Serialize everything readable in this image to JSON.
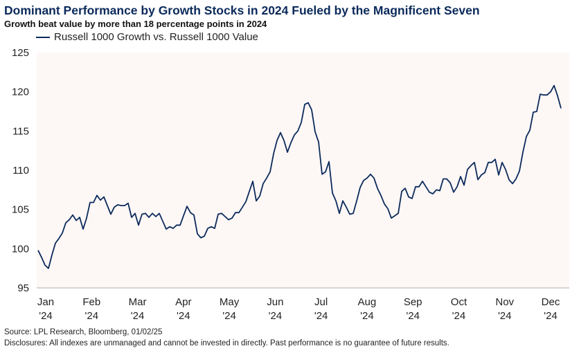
{
  "chart_data": {
    "type": "line",
    "title": "Dominant Performance by Growth Stocks in 2024 Fueled by the Magnificent Seven",
    "subtitle": "Growth beat value by more than 18 percentage points in 2024",
    "xlabel": "",
    "ylabel": "",
    "x_range": [
      "2024-01-02",
      "2024-12-31"
    ],
    "x_spacing": "evenly spaced trading-day observations",
    "ylim": [
      95,
      125
    ],
    "yticks": [
      95,
      100,
      105,
      110,
      115,
      120,
      125
    ],
    "xtick_labels": [
      {
        "month": "Jan",
        "year": "'24"
      },
      {
        "month": "Feb",
        "year": "'24"
      },
      {
        "month": "Mar",
        "year": "'24"
      },
      {
        "month": "Apr",
        "year": "'24"
      },
      {
        "month": "May",
        "year": "'24"
      },
      {
        "month": "Jun",
        "year": "'24"
      },
      {
        "month": "Jul",
        "year": "'24"
      },
      {
        "month": "Aug",
        "year": "'24"
      },
      {
        "month": "Sep",
        "year": "'24"
      },
      {
        "month": "Oct",
        "year": "'24"
      },
      {
        "month": "Nov",
        "year": "'24"
      },
      {
        "month": "Dec",
        "year": "'24"
      }
    ],
    "grid": false,
    "legend": "top-left",
    "plot_background": "#fdf7f6",
    "series": [
      {
        "name": "Russell 1000 Growth vs. Russell 1000 Value",
        "color": "#0b2a5b",
        "values": [
          99.8,
          98.9,
          97.9,
          97.5,
          99.2,
          100.7,
          101.3,
          102.0,
          103.3,
          103.7,
          104.3,
          103.6,
          104.0,
          102.5,
          103.9,
          105.9,
          105.9,
          106.8,
          106.2,
          106.6,
          105.5,
          104.4,
          105.3,
          105.6,
          105.5,
          105.5,
          105.8,
          104.0,
          104.5,
          103.0,
          104.4,
          104.5,
          104.0,
          104.5,
          104.1,
          104.5,
          103.5,
          102.5,
          102.8,
          102.6,
          103.0,
          103.0,
          104.2,
          105.4,
          104.6,
          104.3,
          101.9,
          101.4,
          101.6,
          102.6,
          102.8,
          102.6,
          104.4,
          104.5,
          104.1,
          103.7,
          103.9,
          104.6,
          104.6,
          105.3,
          106.0,
          107.3,
          108.6,
          106.1,
          106.7,
          108.3,
          109.0,
          109.8,
          112.1,
          113.8,
          114.8,
          113.8,
          112.3,
          113.5,
          114.5,
          115.0,
          116.1,
          118.4,
          118.6,
          117.7,
          114.9,
          113.6,
          109.5,
          109.8,
          111.1,
          107.1,
          106.1,
          104.5,
          106.1,
          105.3,
          104.4,
          104.5,
          106.1,
          107.8,
          108.7,
          109.0,
          109.5,
          109.0,
          107.7,
          106.8,
          105.7,
          105.1,
          103.9,
          104.2,
          104.5,
          107.3,
          107.7,
          106.6,
          106.4,
          107.9,
          107.9,
          108.6,
          107.9,
          107.2,
          107.0,
          107.5,
          107.4,
          108.9,
          108.9,
          108.4,
          107.2,
          107.9,
          109.2,
          108.1,
          110.1,
          110.6,
          111.0,
          108.8,
          109.4,
          109.7,
          111.0,
          111.0,
          111.4,
          109.4,
          111.0,
          110.1,
          108.8,
          108.3,
          108.9,
          109.9,
          112.3,
          114.3,
          115.1,
          117.4,
          117.5,
          119.7,
          119.6,
          119.6,
          120.0,
          120.8,
          119.5,
          117.9
        ]
      }
    ]
  },
  "footer": {
    "source": "Source: LPL Research, Bloomberg, 01/02/25",
    "disclosures": "Disclosures: All indexes are unmanaged and cannot be invested in directly. Past performance is no guarantee of future results."
  }
}
